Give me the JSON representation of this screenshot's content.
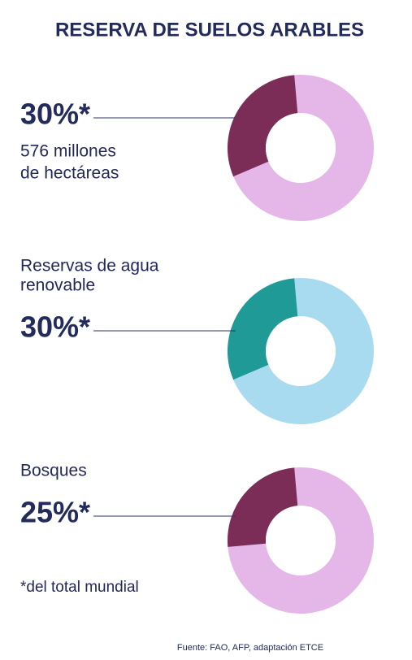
{
  "title": "RESERVA DE SUELOS ARABLES",
  "chart_data": [
    {
      "type": "donut",
      "values": [
        30
      ],
      "value_labels": [
        "30%*"
      ],
      "annotation": [
        "576 millones",
        "de hectáreas"
      ],
      "colors": [
        "#7b2d57"
      ],
      "ring_color": "#e4b7e8"
    },
    {
      "type": "donut",
      "title": [
        "Reservas de agua",
        "renovable"
      ],
      "values": [
        30
      ],
      "value_labels": [
        "30%*"
      ],
      "colors": [
        "#1f9a97"
      ],
      "ring_color": "#a9dbf0"
    },
    {
      "type": "donut",
      "title": [
        "Bosques"
      ],
      "values": [
        25
      ],
      "value_labels": [
        "25%*"
      ],
      "colors": [
        "#7b2d57"
      ],
      "ring_color": "#e4b7e8"
    }
  ],
  "footnote": "*del total mundial",
  "source": "Fuente: FAO, AFP, adaptación ETCE"
}
